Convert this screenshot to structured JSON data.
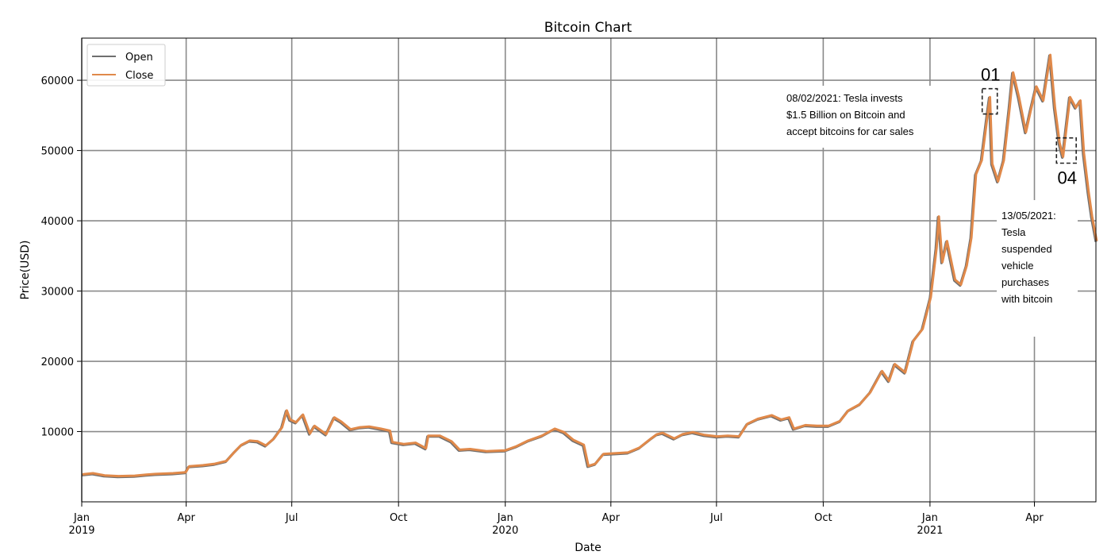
{
  "chart_data": {
    "type": "line",
    "title": "Bitcoin Chart",
    "xlabel": "Date",
    "ylabel": "Price(USD)",
    "grid": true,
    "legend_position": "top-left",
    "x_range": [
      "2019-01-01",
      "2021-05-24"
    ],
    "ylim": [
      0,
      66000
    ],
    "y_ticks": [
      10000,
      20000,
      30000,
      40000,
      50000,
      60000
    ],
    "x_ticks": [
      {
        "date": "2019-01-01",
        "label": "Jan",
        "sub_label": "2019"
      },
      {
        "date": "2019-04-01",
        "label": "Apr",
        "sub_label": ""
      },
      {
        "date": "2019-07-01",
        "label": "Jul",
        "sub_label": ""
      },
      {
        "date": "2019-10-01",
        "label": "Oct",
        "sub_label": ""
      },
      {
        "date": "2020-01-01",
        "label": "Jan",
        "sub_label": "2020"
      },
      {
        "date": "2020-04-01",
        "label": "Apr",
        "sub_label": ""
      },
      {
        "date": "2020-07-01",
        "label": "Jul",
        "sub_label": ""
      },
      {
        "date": "2020-10-01",
        "label": "Oct",
        "sub_label": ""
      },
      {
        "date": "2021-01-01",
        "label": "Jan",
        "sub_label": "2021"
      },
      {
        "date": "2021-04-01",
        "label": "Apr",
        "sub_label": ""
      }
    ],
    "points": [
      [
        "2019-01-01",
        3800
      ],
      [
        "2019-01-10",
        3950
      ],
      [
        "2019-01-20",
        3650
      ],
      [
        "2019-02-01",
        3550
      ],
      [
        "2019-02-15",
        3600
      ],
      [
        "2019-02-25",
        3750
      ],
      [
        "2019-03-05",
        3850
      ],
      [
        "2019-03-20",
        3950
      ],
      [
        "2019-03-31",
        4100
      ],
      [
        "2019-04-03",
        4950
      ],
      [
        "2019-04-15",
        5100
      ],
      [
        "2019-04-25",
        5300
      ],
      [
        "2019-05-05",
        5700
      ],
      [
        "2019-05-12",
        7000
      ],
      [
        "2019-05-18",
        8000
      ],
      [
        "2019-05-25",
        8600
      ],
      [
        "2019-06-01",
        8500
      ],
      [
        "2019-06-08",
        7900
      ],
      [
        "2019-06-15",
        8900
      ],
      [
        "2019-06-22",
        10500
      ],
      [
        "2019-06-26",
        12900
      ],
      [
        "2019-06-29",
        11600
      ],
      [
        "2019-07-04",
        11200
      ],
      [
        "2019-07-10",
        12300
      ],
      [
        "2019-07-16",
        9600
      ],
      [
        "2019-07-20",
        10700
      ],
      [
        "2019-07-30",
        9500
      ],
      [
        "2019-08-06",
        11900
      ],
      [
        "2019-08-12",
        11300
      ],
      [
        "2019-08-20",
        10200
      ],
      [
        "2019-08-28",
        10500
      ],
      [
        "2019-09-05",
        10600
      ],
      [
        "2019-09-15",
        10300
      ],
      [
        "2019-09-23",
        10000
      ],
      [
        "2019-09-25",
        8400
      ],
      [
        "2019-10-05",
        8100
      ],
      [
        "2019-10-15",
        8300
      ],
      [
        "2019-10-24",
        7500
      ],
      [
        "2019-10-26",
        9300
      ],
      [
        "2019-11-05",
        9300
      ],
      [
        "2019-11-15",
        8500
      ],
      [
        "2019-11-22",
        7300
      ],
      [
        "2019-12-01",
        7400
      ],
      [
        "2019-12-15",
        7100
      ],
      [
        "2019-12-31",
        7200
      ],
      [
        "2020-01-10",
        7800
      ],
      [
        "2020-01-20",
        8600
      ],
      [
        "2020-02-01",
        9300
      ],
      [
        "2020-02-12",
        10300
      ],
      [
        "2020-02-20",
        9800
      ],
      [
        "2020-02-28",
        8700
      ],
      [
        "2020-03-08",
        8000
      ],
      [
        "2020-03-12",
        5000
      ],
      [
        "2020-03-18",
        5300
      ],
      [
        "2020-03-25",
        6700
      ],
      [
        "2020-04-05",
        6800
      ],
      [
        "2020-04-15",
        6900
      ],
      [
        "2020-04-25",
        7600
      ],
      [
        "2020-05-05",
        8900
      ],
      [
        "2020-05-10",
        9500
      ],
      [
        "2020-05-15",
        9700
      ],
      [
        "2020-05-25",
        8900
      ],
      [
        "2020-06-01",
        9500
      ],
      [
        "2020-06-10",
        9800
      ],
      [
        "2020-06-20",
        9400
      ],
      [
        "2020-07-01",
        9200
      ],
      [
        "2020-07-10",
        9300
      ],
      [
        "2020-07-20",
        9200
      ],
      [
        "2020-07-27",
        11000
      ],
      [
        "2020-08-05",
        11700
      ],
      [
        "2020-08-17",
        12200
      ],
      [
        "2020-08-25",
        11600
      ],
      [
        "2020-09-01",
        11900
      ],
      [
        "2020-09-05",
        10300
      ],
      [
        "2020-09-15",
        10800
      ],
      [
        "2020-09-25",
        10700
      ],
      [
        "2020-10-05",
        10700
      ],
      [
        "2020-10-15",
        11400
      ],
      [
        "2020-10-22",
        12900
      ],
      [
        "2020-11-01",
        13800
      ],
      [
        "2020-11-10",
        15500
      ],
      [
        "2020-11-20",
        18500
      ],
      [
        "2020-11-26",
        17100
      ],
      [
        "2020-12-01",
        19500
      ],
      [
        "2020-12-10",
        18300
      ],
      [
        "2020-12-17",
        22800
      ],
      [
        "2020-12-25",
        24500
      ],
      [
        "2021-01-01",
        29000
      ],
      [
        "2021-01-06",
        36000
      ],
      [
        "2021-01-08",
        40500
      ],
      [
        "2021-01-11",
        34000
      ],
      [
        "2021-01-15",
        37000
      ],
      [
        "2021-01-22",
        31500
      ],
      [
        "2021-01-27",
        30800
      ],
      [
        "2021-02-01",
        33500
      ],
      [
        "2021-02-05",
        37500
      ],
      [
        "2021-02-09",
        46500
      ],
      [
        "2021-02-14",
        48500
      ],
      [
        "2021-02-19",
        55000
      ],
      [
        "2021-02-21",
        57500
      ],
      [
        "2021-02-23",
        48000
      ],
      [
        "2021-02-28",
        45500
      ],
      [
        "2021-03-05",
        48500
      ],
      [
        "2021-03-10",
        56000
      ],
      [
        "2021-03-13",
        61000
      ],
      [
        "2021-03-18",
        57500
      ],
      [
        "2021-03-24",
        52500
      ],
      [
        "2021-03-28",
        55500
      ],
      [
        "2021-04-02",
        59000
      ],
      [
        "2021-04-08",
        57000
      ],
      [
        "2021-04-14",
        63500
      ],
      [
        "2021-04-18",
        56000
      ],
      [
        "2021-04-22",
        51000
      ],
      [
        "2021-04-25",
        49000
      ],
      [
        "2021-05-01",
        57500
      ],
      [
        "2021-05-06",
        56000
      ],
      [
        "2021-05-10",
        57000
      ],
      [
        "2021-05-13",
        49500
      ],
      [
        "2021-05-17",
        44000
      ],
      [
        "2021-05-20",
        40500
      ],
      [
        "2021-05-24",
        37000
      ]
    ],
    "series": [
      {
        "name": "Open",
        "color": "#6f6f6f"
      },
      {
        "name": "Close",
        "color": "#e0894a"
      }
    ],
    "annotations": [
      {
        "lines": [
          "08/02/2021: Tesla invests",
          "$1.5 Billion on Bitcoin and",
          "accept bitcoins for car sales"
        ]
      },
      {
        "lines": [
          "13/05/2021:",
          "Tesla",
          "suspended",
          "vehicle",
          "purchases",
          "with bitcoin"
        ]
      }
    ],
    "markers": [
      {
        "label": "01",
        "date_start": "2021-02-15",
        "date_end": "2021-02-28",
        "y_low": 55200,
        "y_high": 58800
      },
      {
        "label": "04",
        "date_start": "2021-04-20",
        "date_end": "2021-05-07",
        "y_low": 48200,
        "y_high": 51800
      }
    ]
  }
}
